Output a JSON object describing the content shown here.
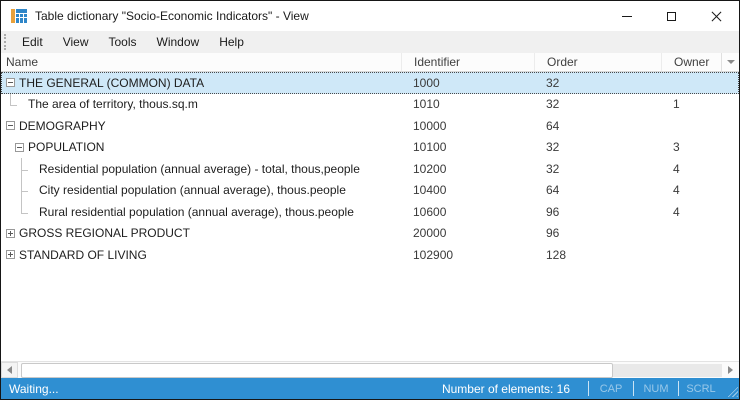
{
  "window": {
    "title": "Table dictionary \"Socio-Economic Indicators\" - View"
  },
  "menu": {
    "items": [
      "Edit",
      "View",
      "Tools",
      "Window",
      "Help"
    ]
  },
  "table": {
    "columns": [
      "Name",
      "Identifier",
      "Order",
      "Owner"
    ],
    "rows": [
      {
        "name": "THE GENERAL (COMMON) DATA",
        "identifier": "1000",
        "order": "32",
        "owner": "",
        "level": 0,
        "expander": "expanded",
        "selected": true
      },
      {
        "name": "The area of territory, thous.sq.m",
        "identifier": "1010",
        "order": "32",
        "owner": "1",
        "level": 1,
        "connector": "last"
      },
      {
        "name": "DEMOGRAPHY",
        "identifier": "10000",
        "order": "64",
        "owner": "",
        "level": 0,
        "expander": "expanded"
      },
      {
        "name": "POPULATION",
        "identifier": "10100",
        "order": "32",
        "owner": "3",
        "level": 1,
        "expander": "expanded"
      },
      {
        "name": "Residential population (annual average) - total, thous,people",
        "identifier": "10200",
        "order": "32",
        "owner": "4",
        "level": 2,
        "connector": "mid"
      },
      {
        "name": "City residential population (annual average), thous.people",
        "identifier": "10400",
        "order": "64",
        "owner": "4",
        "level": 2,
        "connector": "mid"
      },
      {
        "name": "Rural residential population (annual average), thous.people",
        "identifier": "10600",
        "order": "96",
        "owner": "4",
        "level": 2,
        "connector": "last"
      },
      {
        "name": "GROSS REGIONAL PRODUCT",
        "identifier": "20000",
        "order": "96",
        "owner": "",
        "level": 0,
        "expander": "collapsed"
      },
      {
        "name": "STANDARD OF LIVING",
        "identifier": "102900",
        "order": "128",
        "owner": "",
        "level": 0,
        "expander": "collapsed"
      }
    ]
  },
  "statusbar": {
    "status": "Waiting...",
    "elements_label": "Number of elements: 16",
    "indicators": [
      "CAP",
      "NUM",
      "SCRL"
    ]
  },
  "colors": {
    "status_bar_blue": "#2f8fd2",
    "selection_blue": "#cfe8f8",
    "menu_bar_gray": "#f0f0f0",
    "icon_orange": "#e9a13b",
    "icon_blue": "#2f86c8"
  }
}
